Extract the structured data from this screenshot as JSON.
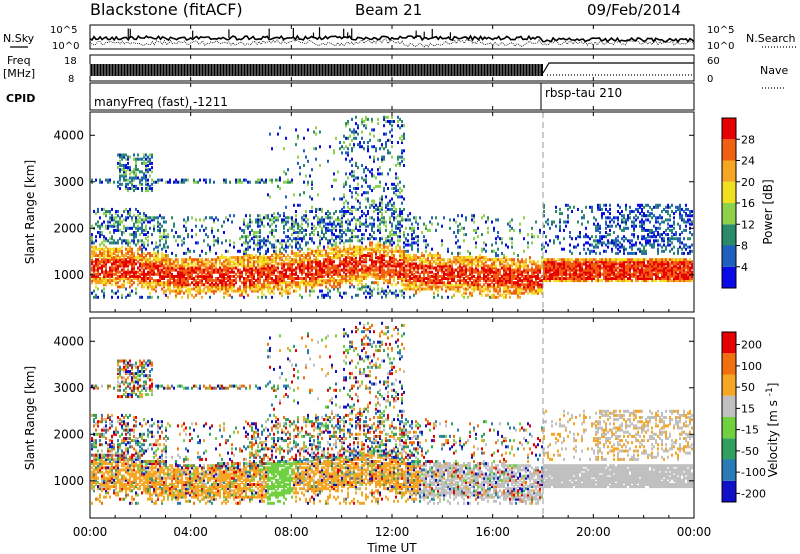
{
  "header": {
    "station": "Blackstone (fitACF)",
    "beam": "Beam 21",
    "date": "09/Feb/2014"
  },
  "labels": {
    "nsky": "N.Sky",
    "nsearch": "N.Search",
    "freq": "Freq",
    "mhz": "[MHz]",
    "nave": "Nave",
    "cpid": "CPID",
    "cpid_segments": [
      "manyFreq (fast) -1211",
      "rbsp-tau 210"
    ],
    "noise_ticks": [
      "10^5",
      "10^0"
    ],
    "freq_ticks": [
      "18",
      "8"
    ],
    "nave_ticks": [
      "60",
      "0"
    ]
  },
  "chart_data": [
    {
      "type": "heatmap",
      "panel": "power",
      "ylabel": "Slant Range [km]",
      "xlabel": "Time UT",
      "x_ticks": [
        "00:00",
        "04:00",
        "08:00",
        "12:00",
        "16:00",
        "20:00",
        "00:00"
      ],
      "y_ticks": [
        1000,
        2000,
        3000,
        4000
      ],
      "ylim": [
        200,
        4500
      ],
      "xlim_hours": [
        0,
        24
      ],
      "colorbar": {
        "label": "Power [dB]",
        "ticks": [
          4,
          8,
          12,
          16,
          20,
          24,
          28
        ],
        "range": [
          0,
          30
        ],
        "colors": [
          "#0a0ae6",
          "#1f5fbf",
          "#2a8a6a",
          "#8ed14a",
          "#f0e020",
          "#f5a623",
          "#f06010",
          "#e60000"
        ]
      },
      "description_segments": [
        {
          "t": [
            0,
            18
          ],
          "bands": [
            [
              700,
              1400
            ],
            [
              1400,
              2100
            ]
          ]
        },
        {
          "t": [
            18,
            24
          ],
          "bands": [
            [
              850,
              1350
            ],
            [
              1500,
              2600
            ]
          ]
        }
      ]
    },
    {
      "type": "heatmap",
      "panel": "velocity",
      "ylabel": "Slant Range [km]",
      "xlabel": "Time UT",
      "x_ticks": [
        "00:00",
        "04:00",
        "08:00",
        "12:00",
        "16:00",
        "20:00",
        "00:00"
      ],
      "y_ticks": [
        1000,
        2000,
        3000,
        4000
      ],
      "ylim": [
        200,
        4500
      ],
      "xlim_hours": [
        0,
        24
      ],
      "colorbar": {
        "label": "Velocity [m s^-1]",
        "ticks": [
          200,
          100,
          50,
          15,
          -15,
          -50,
          -100,
          -200
        ],
        "colors": [
          "#1010c8",
          "#2a7ab8",
          "#30a060",
          "#70d040",
          "#c0c0c0",
          "#f5a623",
          "#f07010",
          "#e60000"
        ]
      }
    }
  ],
  "colors": {
    "cpid_divider": "#999999"
  }
}
